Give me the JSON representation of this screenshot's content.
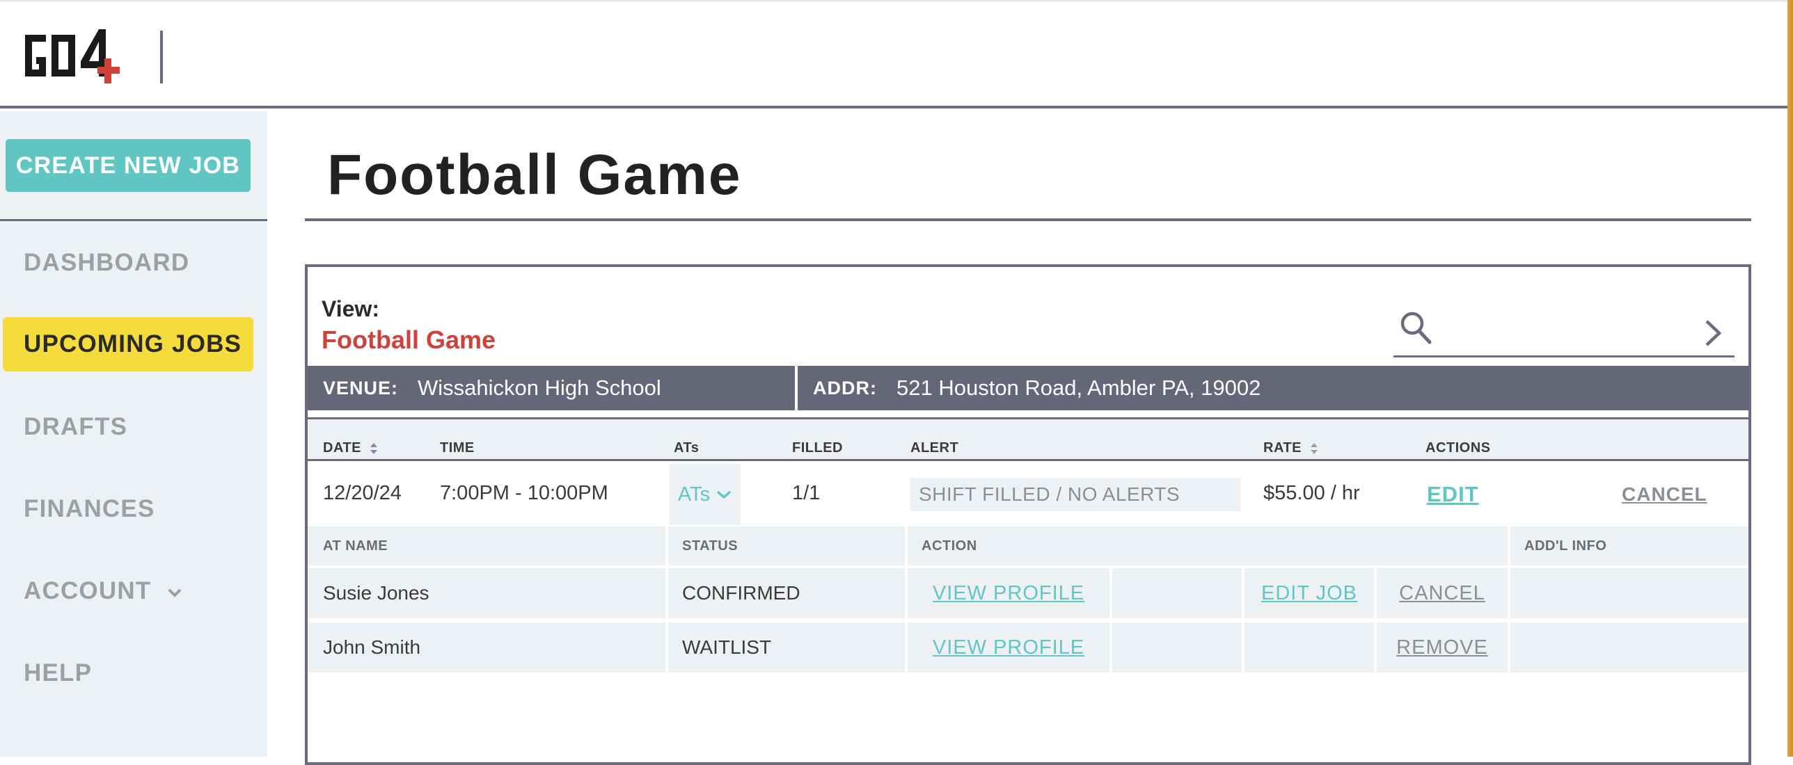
{
  "brand": {
    "logo_text": "GO4+",
    "accent": "#d0413a",
    "teal": "#5fc6c4",
    "yellow": "#f5dc3c"
  },
  "sidebar": {
    "create_label": "CREATE NEW JOB",
    "items": [
      {
        "label": "DASHBOARD"
      },
      {
        "label": "UPCOMING JOBS",
        "active": true
      },
      {
        "label": "DRAFTS"
      },
      {
        "label": "FINANCES"
      },
      {
        "label": "ACCOUNT",
        "icon": "chevron-down-icon"
      },
      {
        "label": "HELP"
      }
    ]
  },
  "page": {
    "title": "Football Game"
  },
  "view": {
    "label": "View:",
    "name": "Football Game"
  },
  "search": {
    "placeholder": "",
    "value": ""
  },
  "info": {
    "venue_key": "VENUE:",
    "venue": "Wissahickon High School",
    "addr_key": "ADDR:",
    "addr": "521 Houston Road, Ambler PA, 19002"
  },
  "table": {
    "headers": [
      "DATE",
      "TIME",
      "ATs",
      "FILLED",
      "ALERT",
      "RATE",
      "ACTIONS"
    ],
    "row": {
      "date": "12/20/24",
      "time": "7:00PM - 10:00PM",
      "ats": "ATs",
      "filled": "1/1",
      "alert": "SHIFT FILLED / NO ALERTS",
      "rate": "$55.00 / hr",
      "edit": "EDIT",
      "cancel": "CANCEL"
    }
  },
  "subtable": {
    "headers": [
      "AT NAME",
      "STATUS",
      "ACTION",
      "ADD'L INFO"
    ],
    "rows": [
      {
        "name": "Susie Jones",
        "status": "CONFIRMED",
        "view": "VIEW PROFILE",
        "edit": "EDIT JOB",
        "secondary": "CANCEL"
      },
      {
        "name": "John Smith",
        "status": "WAITLIST",
        "view": "VIEW PROFILE",
        "edit": "",
        "secondary": "REMOVE"
      }
    ]
  }
}
